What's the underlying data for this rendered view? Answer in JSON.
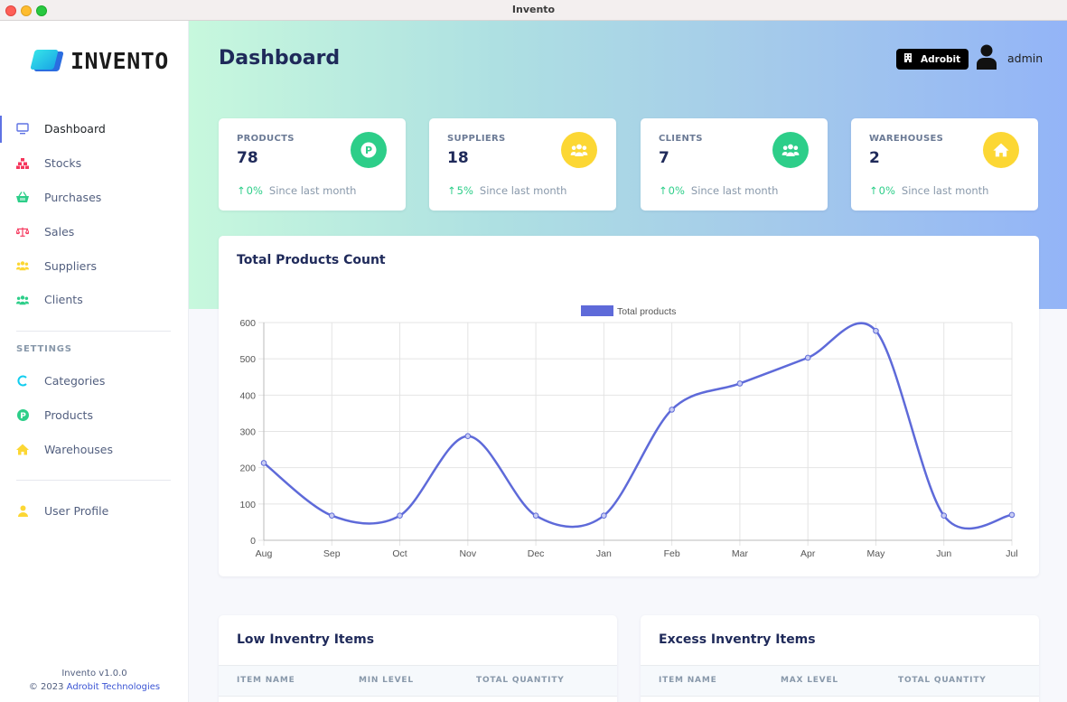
{
  "window": {
    "title": "Invento"
  },
  "brand": {
    "name": "INVENTO"
  },
  "sidebar": {
    "items": [
      {
        "label": "Dashboard",
        "icon": "monitor-icon"
      },
      {
        "label": "Stocks",
        "icon": "stocks-icon"
      },
      {
        "label": "Purchases",
        "icon": "basket-icon"
      },
      {
        "label": "Sales",
        "icon": "scale-icon"
      },
      {
        "label": "Suppliers",
        "icon": "users-icon"
      },
      {
        "label": "Clients",
        "icon": "users-icon"
      }
    ],
    "settings_heading": "SETTINGS",
    "settings_items": [
      {
        "label": "Categories",
        "icon": "c-icon"
      },
      {
        "label": "Products",
        "icon": "p-icon"
      },
      {
        "label": "Warehouses",
        "icon": "home-icon"
      }
    ],
    "profile_item": {
      "label": "User Profile",
      "icon": "user-icon"
    },
    "footer": {
      "version": "Invento v1.0.0",
      "copyright": "© 2023",
      "company": "Adrobit Technologies"
    }
  },
  "header": {
    "title": "Dashboard",
    "org_button": "Adrobit",
    "user": "admin"
  },
  "stats": [
    {
      "label": "PRODUCTS",
      "value": "78",
      "change": "0%",
      "since": "Since last month",
      "icon": "p-icon",
      "color": "#2dce89"
    },
    {
      "label": "SUPPLIERS",
      "value": "18",
      "change": "5%",
      "since": "Since last month",
      "icon": "users-icon",
      "color": "#fcd734"
    },
    {
      "label": "CLIENTS",
      "value": "7",
      "change": "0%",
      "since": "Since last month",
      "icon": "users-icon",
      "color": "#2dce89"
    },
    {
      "label": "WAREHOUSES",
      "value": "2",
      "change": "0%",
      "since": "Since last month",
      "icon": "home-icon",
      "color": "#fcd734"
    }
  ],
  "chart_card": {
    "title": "Total Products Count"
  },
  "chart_data": {
    "type": "line",
    "categories": [
      "Aug",
      "Sep",
      "Oct",
      "Nov",
      "Dec",
      "Jan",
      "Feb",
      "Mar",
      "Apr",
      "May",
      "Jun",
      "Jul"
    ],
    "series": [
      {
        "name": "Total products",
        "values": [
          213,
          68,
          68,
          287,
          68,
          68,
          360,
          432,
          503,
          577,
          68,
          70
        ],
        "color": "#5e6ad9"
      }
    ],
    "ylim": [
      0,
      600
    ],
    "yticks": [
      0,
      100,
      200,
      300,
      400,
      500,
      600
    ],
    "grid": true,
    "legend": "top-center"
  },
  "low_inventory": {
    "title": "Low Inventry Items",
    "columns": [
      "ITEM NAME",
      "MIN LEVEL",
      "TOTAL QUANTITY"
    ]
  },
  "excess_inventory": {
    "title": "Excess Inventry Items",
    "columns": [
      "ITEM NAME",
      "MAX LEVEL",
      "TOTAL QUANTITY"
    ]
  }
}
